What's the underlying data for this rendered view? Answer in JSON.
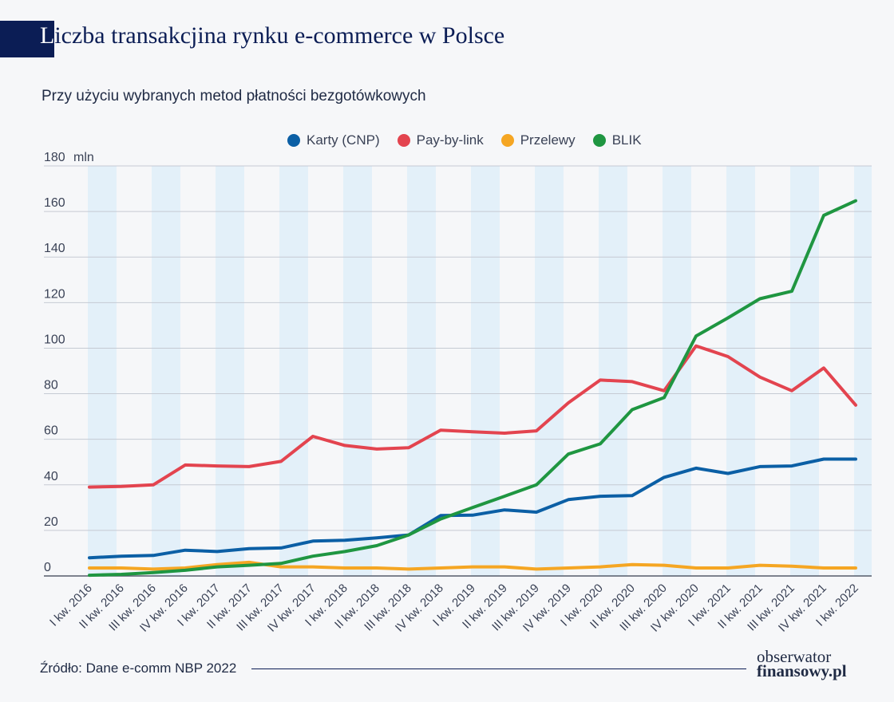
{
  "header": {
    "title_first": "L",
    "title_rest": "iczba transakcjina rynku e-commerce w Polsce"
  },
  "subtitle": "Przy użyciu wybranych metod płatności bezgotówkowych",
  "footer": {
    "source": "Źródło: Dane e-comm NBP 2022",
    "logo_line1": "obserwator",
    "logo_line2": "finansowy.pl"
  },
  "chart_data": {
    "type": "line",
    "categories": [
      "I kw. 2016",
      "II kw. 2016",
      "III kw. 2016",
      "IV kw. 2016",
      "I kw. 2017",
      "II kw. 2017",
      "III kw. 2017",
      "IV kw. 2017",
      "I kw. 2018",
      "II kw. 2018",
      "III kw. 2018",
      "IV kw. 2018",
      "I kw. 2019",
      "II kw. 2019",
      "III kw. 2019",
      "IV kw. 2019",
      "I kw. 2020",
      "II kw. 2020",
      "III kw. 2020",
      "IV kw. 2020",
      "I kw. 2021",
      "II kw. 2021",
      "III kw. 2021",
      "IV kw. 2021",
      "I kw. 2022"
    ],
    "yticks": [
      "0",
      "20",
      "40",
      "60",
      "80",
      "100",
      "120",
      "140",
      "160",
      "180"
    ],
    "ylabel_unit": "mln",
    "ylim": [
      0,
      180
    ],
    "grid": true,
    "legend_position": "top",
    "series": [
      {
        "name": "Karty (CNP)",
        "color": "#0b5fa5",
        "values": [
          8,
          8.7,
          9,
          11.3,
          10.7,
          12,
          12.3,
          15.3,
          15.7,
          16.7,
          18,
          26.5,
          26.7,
          29,
          28,
          33.5,
          35,
          35.3,
          43.3,
          47.3,
          45,
          48,
          48.3,
          51.3,
          51.3
        ]
      },
      {
        "name": "Pay-by-link",
        "color": "#e3444f",
        "values": [
          39,
          39.3,
          40,
          48.7,
          48.3,
          48,
          50.3,
          61.3,
          57.3,
          55.7,
          56.3,
          64,
          63.3,
          62.7,
          63.7,
          76,
          86,
          85.3,
          81.3,
          101,
          96.3,
          87.3,
          81.3,
          91.3,
          75
        ]
      },
      {
        "name": "Przelewy",
        "color": "#f5a623",
        "values": [
          3.5,
          3.5,
          3,
          3.5,
          5,
          6,
          4,
          4,
          3.5,
          3.5,
          3,
          3.5,
          4,
          4,
          3,
          3.5,
          4,
          5,
          4.7,
          3.5,
          3.5,
          4.7,
          4.3,
          3.5,
          3.5
        ]
      },
      {
        "name": "BLIK",
        "color": "#1f9641",
        "values": [
          0.3,
          0.7,
          1.5,
          2.5,
          4,
          4.7,
          5.5,
          8.7,
          10.7,
          13.3,
          18,
          25,
          30,
          35,
          40,
          53.5,
          58,
          73,
          78.3,
          105.3,
          113.3,
          121.7,
          125,
          158.3,
          164.7
        ]
      }
    ]
  }
}
